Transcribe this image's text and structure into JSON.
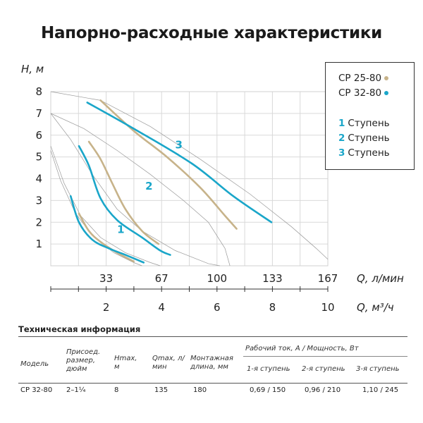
{
  "title": "Напорно-расходные характеристики",
  "chart_data": {
    "type": "line",
    "ylabel": "H, м",
    "xlabel": "Q, л/мин",
    "x2label": "Q, м³/ч",
    "ylim": [
      0,
      8
    ],
    "xlim": [
      0,
      167
    ],
    "y_ticks": [
      "1",
      "2",
      "3",
      "4",
      "5",
      "6",
      "7",
      "8"
    ],
    "x_ticks": [
      "33",
      "67",
      "100",
      "133",
      "167"
    ],
    "x2_ticks": [
      "2",
      "4",
      "6",
      "8",
      "10"
    ],
    "stage_labels": [
      "1",
      "2",
      "3"
    ],
    "series": [
      {
        "name": "CP 25-80",
        "color": "#c7b38a",
        "stage": "1",
        "points": [
          [
            17,
            2.4
          ],
          [
            23,
            1.6
          ],
          [
            30,
            1.1
          ],
          [
            40,
            0.6
          ],
          [
            50,
            0.2
          ]
        ]
      },
      {
        "name": "CP 25-80",
        "color": "#c7b38a",
        "stage": "2",
        "points": [
          [
            23,
            5.7
          ],
          [
            30,
            4.9
          ],
          [
            37,
            3.8
          ],
          [
            45,
            2.6
          ],
          [
            55,
            1.6
          ],
          [
            65,
            1.0
          ]
        ]
      },
      {
        "name": "CP 25-80",
        "color": "#c7b38a",
        "stage": "3",
        "points": [
          [
            30,
            7.6
          ],
          [
            50,
            6.2
          ],
          [
            70,
            5.0
          ],
          [
            90,
            3.6
          ],
          [
            105,
            2.3
          ],
          [
            112,
            1.7
          ]
        ]
      },
      {
        "name": "CP 32-80",
        "color": "#1aa6c9",
        "stage": "1",
        "points": [
          [
            12,
            3.2
          ],
          [
            17,
            2.0
          ],
          [
            25,
            1.2
          ],
          [
            35,
            0.8
          ],
          [
            45,
            0.5
          ],
          [
            56,
            0.15
          ]
        ]
      },
      {
        "name": "CP 32-80",
        "color": "#1aa6c9",
        "stage": "2",
        "points": [
          [
            17,
            5.5
          ],
          [
            23,
            4.6
          ],
          [
            30,
            3.1
          ],
          [
            40,
            2.1
          ],
          [
            55,
            1.3
          ],
          [
            66,
            0.7
          ],
          [
            72,
            0.5
          ]
        ]
      },
      {
        "name": "CP 32-80",
        "color": "#1aa6c9",
        "stage": "3",
        "points": [
          [
            22,
            7.5
          ],
          [
            50,
            6.3
          ],
          [
            85,
            4.7
          ],
          [
            110,
            3.2
          ],
          [
            133,
            2.0
          ]
        ]
      }
    ]
  },
  "legend": {
    "series": [
      {
        "label": "CP 25-80",
        "color": "#c7b38a"
      },
      {
        "label": "CP 32-80",
        "color": "#1aa6c9"
      }
    ],
    "stages": [
      {
        "num": "1",
        "label": "Ступень"
      },
      {
        "num": "2",
        "label": "Ступень"
      },
      {
        "num": "3",
        "label": "Ступень"
      }
    ]
  },
  "tech": {
    "title": "Техническая информация",
    "headers": {
      "model": "Модель",
      "connection": "Присоед. размер, дюйм",
      "hmax": "Hmax, м",
      "qmax": "Qmax, л/мин",
      "length": "Монтажная длина, мм",
      "power_group": "Рабочий ток, А / Мощность, Вт",
      "s1": "1-я ступень",
      "s2": "2-я ступень",
      "s3": "3-я ступень"
    },
    "row": {
      "model": "CP 32-80",
      "connection": "2–1¼",
      "hmax": "8",
      "qmax": "135",
      "length": "180",
      "s1": "0,69 / 150",
      "s2": "0,96 / 210",
      "s3": "1,10 / 245"
    }
  }
}
